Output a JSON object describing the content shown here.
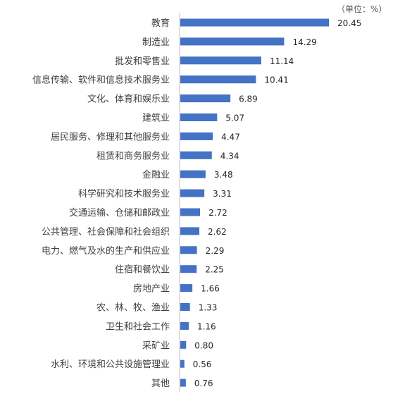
{
  "chart_data": {
    "type": "bar",
    "orientation": "horizontal",
    "unit_label": "（单位：%）",
    "categories": [
      "教育",
      "制造业",
      "批发和零售业",
      "信息传输、软件和信息技术服务业",
      "文化、体育和娱乐业",
      "建筑业",
      "居民服务、修理和其他服务业",
      "租赁和商务服务业",
      "金融业",
      "科学研究和技术服务业",
      "交通运输、仓储和邮政业",
      "公共管理、社会保障和社会组织",
      "电力、燃气及水的生产和供应业",
      "住宿和餐饮业",
      "房地产业",
      "农、林、牧、渔业",
      "卫生和社会工作",
      "采矿业",
      "水利、环境和公共设施管理业",
      "其他"
    ],
    "values": [
      20.45,
      14.29,
      11.14,
      10.41,
      6.89,
      5.07,
      4.47,
      4.34,
      3.48,
      3.31,
      2.72,
      2.62,
      2.29,
      2.25,
      1.66,
      1.33,
      1.16,
      0.8,
      0.56,
      0.76
    ],
    "value_labels": [
      "20.45",
      "14.29",
      "11.14",
      "10.41",
      "6.89",
      "5.07",
      "4.47",
      "4.34",
      "3.48",
      "3.31",
      "2.72",
      "2.62",
      "2.29",
      "2.25",
      "1.66",
      "1.33",
      "1.16",
      "0.80",
      "0.56",
      "0.76"
    ],
    "xlim": [
      0,
      20.45
    ],
    "grid": false,
    "legend": "none",
    "colors": {
      "bar": "#4472c4",
      "axis": "#bfbfbf"
    }
  }
}
